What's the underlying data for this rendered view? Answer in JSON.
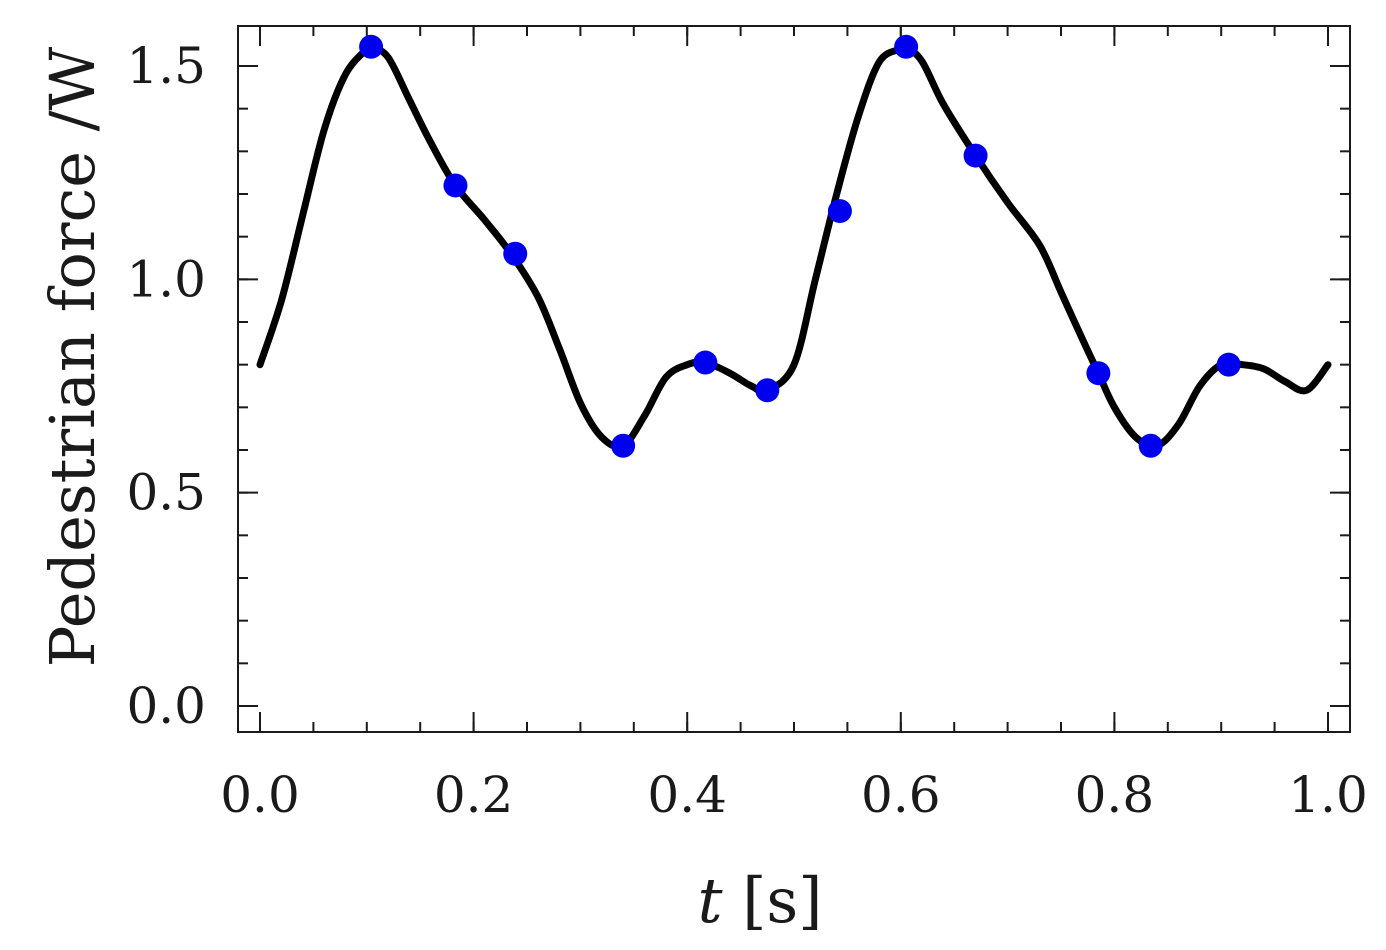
{
  "chart_data": {
    "type": "line",
    "xlabel_var": "t",
    "xlabel_unit": " [s]",
    "ylabel": "Pedestrian force /W",
    "xlim": [
      0.0,
      1.0
    ],
    "ylim": [
      0.0,
      1.5
    ],
    "x_ticks": [
      0.0,
      0.2,
      0.4,
      0.6,
      0.8,
      1.0
    ],
    "x_tick_labels": [
      "0.0",
      "0.2",
      "0.4",
      "0.6",
      "0.8",
      "1.0"
    ],
    "y_ticks": [
      0.0,
      0.5,
      1.0,
      1.5
    ],
    "y_tick_labels": [
      "0.0",
      "0.5",
      "1.0",
      "1.5"
    ],
    "x_minor_step": 0.05,
    "y_minor_step": 0.1,
    "grid": false,
    "line_color": "#000000",
    "marker_color": "#0000ee",
    "series": [
      {
        "style": "line",
        "x": [
          0.0,
          0.02,
          0.04,
          0.06,
          0.08,
          0.1,
          0.104,
          0.12,
          0.14,
          0.16,
          0.183,
          0.21,
          0.235,
          0.26,
          0.28,
          0.3,
          0.32,
          0.34,
          0.36,
          0.38,
          0.4,
          0.417,
          0.44,
          0.46,
          0.475,
          0.5,
          0.52,
          0.54,
          0.56,
          0.58,
          0.6,
          0.605,
          0.62,
          0.64,
          0.67,
          0.7,
          0.73,
          0.75,
          0.77,
          0.785,
          0.8,
          0.82,
          0.84,
          0.86,
          0.88,
          0.9,
          0.92,
          0.94,
          0.96,
          0.98,
          1.0
        ],
        "y": [
          0.8,
          0.95,
          1.15,
          1.35,
          1.48,
          1.54,
          1.545,
          1.52,
          1.42,
          1.32,
          1.22,
          1.14,
          1.06,
          0.96,
          0.84,
          0.71,
          0.63,
          0.61,
          0.68,
          0.77,
          0.8,
          0.805,
          0.78,
          0.75,
          0.74,
          0.8,
          1.0,
          1.2,
          1.38,
          1.51,
          1.54,
          1.545,
          1.51,
          1.41,
          1.29,
          1.18,
          1.08,
          0.97,
          0.86,
          0.78,
          0.7,
          0.63,
          0.61,
          0.66,
          0.75,
          0.8,
          0.8,
          0.79,
          0.76,
          0.74,
          0.8
        ]
      },
      {
        "style": "markers",
        "x": [
          0.104,
          0.183,
          0.239,
          0.34,
          0.417,
          0.475,
          0.543,
          0.605,
          0.67,
          0.785,
          0.834,
          0.907
        ],
        "y": [
          1.545,
          1.22,
          1.06,
          0.61,
          0.805,
          0.74,
          1.16,
          1.545,
          1.29,
          0.78,
          0.61,
          0.8
        ]
      }
    ]
  }
}
